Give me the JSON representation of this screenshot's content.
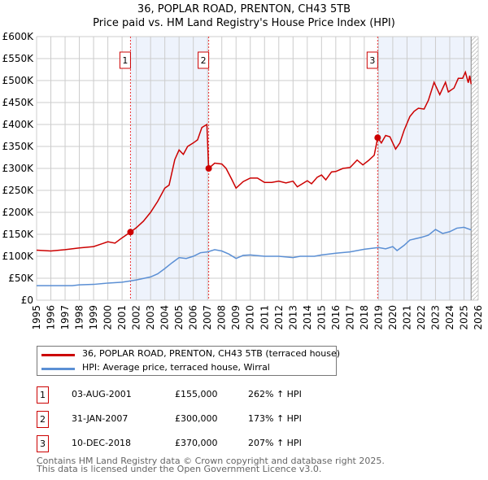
{
  "title": "36, POPLAR ROAD, PRENTON, CH43 5TB",
  "subtitle": "Price paid vs. HM Land Registry's House Price Index (HPI)",
  "chart_data": {
    "type": "line",
    "xlim": [
      1995,
      2026
    ],
    "ylim": [
      0,
      600000
    ],
    "yticks": [
      {
        "v": 0,
        "l": "£0"
      },
      {
        "v": 50000,
        "l": "£50K"
      },
      {
        "v": 100000,
        "l": "£100K"
      },
      {
        "v": 150000,
        "l": "£150K"
      },
      {
        "v": 200000,
        "l": "£200K"
      },
      {
        "v": 250000,
        "l": "£250K"
      },
      {
        "v": 300000,
        "l": "£300K"
      },
      {
        "v": 350000,
        "l": "£350K"
      },
      {
        "v": 400000,
        "l": "£400K"
      },
      {
        "v": 450000,
        "l": "£450K"
      },
      {
        "v": 500000,
        "l": "£500K"
      },
      {
        "v": 550000,
        "l": "£550K"
      },
      {
        "v": 600000,
        "l": "£600K"
      }
    ],
    "xticks": [
      "1995",
      "1996",
      "1997",
      "1998",
      "1999",
      "2000",
      "2001",
      "2002",
      "2003",
      "2004",
      "2005",
      "2006",
      "2007",
      "2008",
      "2009",
      "2010",
      "2011",
      "2012",
      "2013",
      "2014",
      "2015",
      "2016",
      "2017",
      "2018",
      "2019",
      "2020",
      "2021",
      "2022",
      "2023",
      "2024",
      "2025",
      "2026"
    ],
    "grid": true,
    "shaded_ranges": [
      [
        2001.59,
        2007.08
      ],
      [
        2018.94,
        2025.5
      ]
    ],
    "hatched_from": 2025.5,
    "colors": {
      "price": "#cc0000",
      "hpi": "#5b8fd4",
      "shade": "#eef3fc"
    },
    "series": [
      {
        "name": "36, POPLAR ROAD, PRENTON, CH43 5TB (terraced house)",
        "color": "#cc0000",
        "points": [
          [
            1995,
            114000
          ],
          [
            1996,
            112000
          ],
          [
            1997,
            115000
          ],
          [
            1998,
            119000
          ],
          [
            1999,
            122000
          ],
          [
            2000,
            133000
          ],
          [
            2000.5,
            130000
          ],
          [
            2001,
            142000
          ],
          [
            2001.59,
            155000
          ],
          [
            2002,
            165000
          ],
          [
            2002.5,
            180000
          ],
          [
            2003,
            200000
          ],
          [
            2003.5,
            225000
          ],
          [
            2004,
            255000
          ],
          [
            2004.3,
            262000
          ],
          [
            2004.7,
            320000
          ],
          [
            2005,
            342000
          ],
          [
            2005.3,
            332000
          ],
          [
            2005.6,
            350000
          ],
          [
            2006,
            358000
          ],
          [
            2006.3,
            365000
          ],
          [
            2006.6,
            393000
          ],
          [
            2006.95,
            400000
          ],
          [
            2007.08,
            300000
          ],
          [
            2007.5,
            312000
          ],
          [
            2008,
            310000
          ],
          [
            2008.3,
            300000
          ],
          [
            2008.7,
            275000
          ],
          [
            2009,
            255000
          ],
          [
            2009.5,
            270000
          ],
          [
            2010,
            278000
          ],
          [
            2010.5,
            278000
          ],
          [
            2011,
            268000
          ],
          [
            2011.5,
            268000
          ],
          [
            2012,
            271000
          ],
          [
            2012.5,
            267000
          ],
          [
            2013,
            271000
          ],
          [
            2013.3,
            258000
          ],
          [
            2013.7,
            266000
          ],
          [
            2014,
            272000
          ],
          [
            2014.3,
            265000
          ],
          [
            2014.7,
            280000
          ],
          [
            2015,
            285000
          ],
          [
            2015.3,
            274000
          ],
          [
            2015.7,
            292000
          ],
          [
            2016,
            293000
          ],
          [
            2016.5,
            300000
          ],
          [
            2017,
            302000
          ],
          [
            2017.5,
            319000
          ],
          [
            2017.9,
            308000
          ],
          [
            2018.3,
            318000
          ],
          [
            2018.7,
            330000
          ],
          [
            2018.94,
            370000
          ],
          [
            2019.2,
            358000
          ],
          [
            2019.5,
            375000
          ],
          [
            2019.8,
            372000
          ],
          [
            2020.2,
            344000
          ],
          [
            2020.5,
            358000
          ],
          [
            2020.8,
            387000
          ],
          [
            2021.2,
            418000
          ],
          [
            2021.5,
            430000
          ],
          [
            2021.8,
            437000
          ],
          [
            2022.2,
            435000
          ],
          [
            2022.5,
            455000
          ],
          [
            2022.9,
            496000
          ],
          [
            2023.3,
            468000
          ],
          [
            2023.7,
            496000
          ],
          [
            2023.9,
            474000
          ],
          [
            2024.3,
            483000
          ],
          [
            2024.6,
            505000
          ],
          [
            2024.9,
            505000
          ],
          [
            2025.1,
            519000
          ],
          [
            2025.3,
            495000
          ],
          [
            2025.4,
            511000
          ],
          [
            2025.5,
            492000
          ]
        ]
      },
      {
        "name": "HPI: Average price, terraced house, Wirral",
        "color": "#5b8fd4",
        "points": [
          [
            1995,
            33000
          ],
          [
            1997.5,
            33000
          ],
          [
            1998,
            35000
          ],
          [
            1999,
            36000
          ],
          [
            2000,
            39000
          ],
          [
            2001,
            41000
          ],
          [
            2001.6,
            44000
          ],
          [
            2002,
            46000
          ],
          [
            2003,
            53000
          ],
          [
            2003.5,
            60000
          ],
          [
            2004,
            72000
          ],
          [
            2004.5,
            85000
          ],
          [
            2005,
            97000
          ],
          [
            2005.5,
            95000
          ],
          [
            2006,
            100000
          ],
          [
            2006.5,
            108000
          ],
          [
            2007,
            110000
          ],
          [
            2007.5,
            115000
          ],
          [
            2008,
            112000
          ],
          [
            2008.5,
            105000
          ],
          [
            2009,
            95000
          ],
          [
            2009.5,
            102000
          ],
          [
            2010,
            103000
          ],
          [
            2011,
            100000
          ],
          [
            2012,
            100000
          ],
          [
            2013,
            97000
          ],
          [
            2013.5,
            100000
          ],
          [
            2014.5,
            100000
          ],
          [
            2015,
            103000
          ],
          [
            2016,
            107000
          ],
          [
            2017,
            110000
          ],
          [
            2018,
            116000
          ],
          [
            2019,
            120000
          ],
          [
            2019.5,
            117000
          ],
          [
            2020,
            122000
          ],
          [
            2020.3,
            113000
          ],
          [
            2020.8,
            125000
          ],
          [
            2021.2,
            137000
          ],
          [
            2022,
            143000
          ],
          [
            2022.5,
            148000
          ],
          [
            2023,
            161000
          ],
          [
            2023.5,
            152000
          ],
          [
            2024,
            156000
          ],
          [
            2024.5,
            164000
          ],
          [
            2025,
            166000
          ],
          [
            2025.5,
            160000
          ]
        ]
      }
    ],
    "sales": [
      {
        "label": "1",
        "x": 2001.59,
        "y": 155000
      },
      {
        "label": "2",
        "x": 2007.08,
        "y": 300000
      },
      {
        "label": "3",
        "x": 2018.94,
        "y": 370000
      }
    ]
  },
  "legend": {
    "price_label": "36, POPLAR ROAD, PRENTON, CH43 5TB (terraced house)",
    "hpi_label": "HPI: Average price, terraced house, Wirral"
  },
  "transactions": [
    {
      "num": "1",
      "date": "03-AUG-2001",
      "price": "£155,000",
      "hpi": "262% ↑ HPI"
    },
    {
      "num": "2",
      "date": "31-JAN-2007",
      "price": "£300,000",
      "hpi": "173% ↑ HPI"
    },
    {
      "num": "3",
      "date": "10-DEC-2018",
      "price": "£370,000",
      "hpi": "207% ↑ HPI"
    }
  ],
  "footer": {
    "line1": "Contains HM Land Registry data © Crown copyright and database right 2025.",
    "line2": "This data is licensed under the Open Government Licence v3.0."
  }
}
